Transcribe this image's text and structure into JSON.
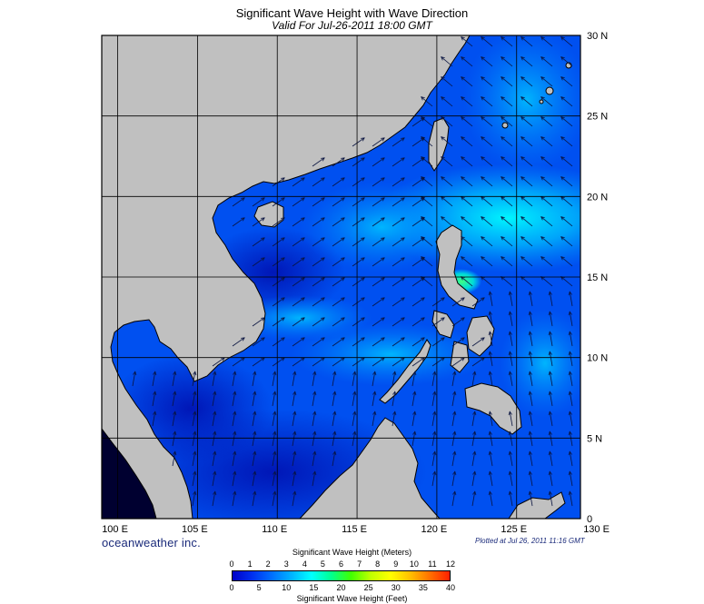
{
  "header": {
    "title": "Significant Wave Height with Wave Direction",
    "subtitle": "Valid For Jul-26-2011 18:00 GMT"
  },
  "map": {
    "lon_labels": [
      "100 E",
      "105 E",
      "110 E",
      "115 E",
      "120 E",
      "125 E",
      "130 E"
    ],
    "lat_labels": [
      "30 N",
      "25 N",
      "20 N",
      "15 N",
      "10 N",
      "5 N",
      "0"
    ],
    "lon_range": [
      99,
      129
    ],
    "lat_range": [
      0,
      30
    ],
    "land_color": "#c0c0c0",
    "grid_color": "#000000",
    "arrow_color": "#0a1440"
  },
  "footer": {
    "brand": "oceanweather inc.",
    "plotted": "Plotted at Jul 26, 2011 11:16 GMT"
  },
  "legend": {
    "meters_title": "Significant Wave Height (Meters)",
    "feet_title": "Significant Wave Height (Feet)",
    "meters_ticks": [
      "0",
      "1",
      "2",
      "3",
      "4",
      "5",
      "6",
      "7",
      "8",
      "9",
      "10",
      "11",
      "12"
    ],
    "feet_ticks": [
      "0",
      "5",
      "10",
      "15",
      "20",
      "25",
      "30",
      "35",
      "40"
    ],
    "colors": [
      "#0000c8",
      "#0030f0",
      "#0070ff",
      "#00b4ff",
      "#00ffff",
      "#00ff90",
      "#40ff00",
      "#c0ff00",
      "#ffff00",
      "#ffc000",
      "#ff7000",
      "#ff2000"
    ]
  }
}
